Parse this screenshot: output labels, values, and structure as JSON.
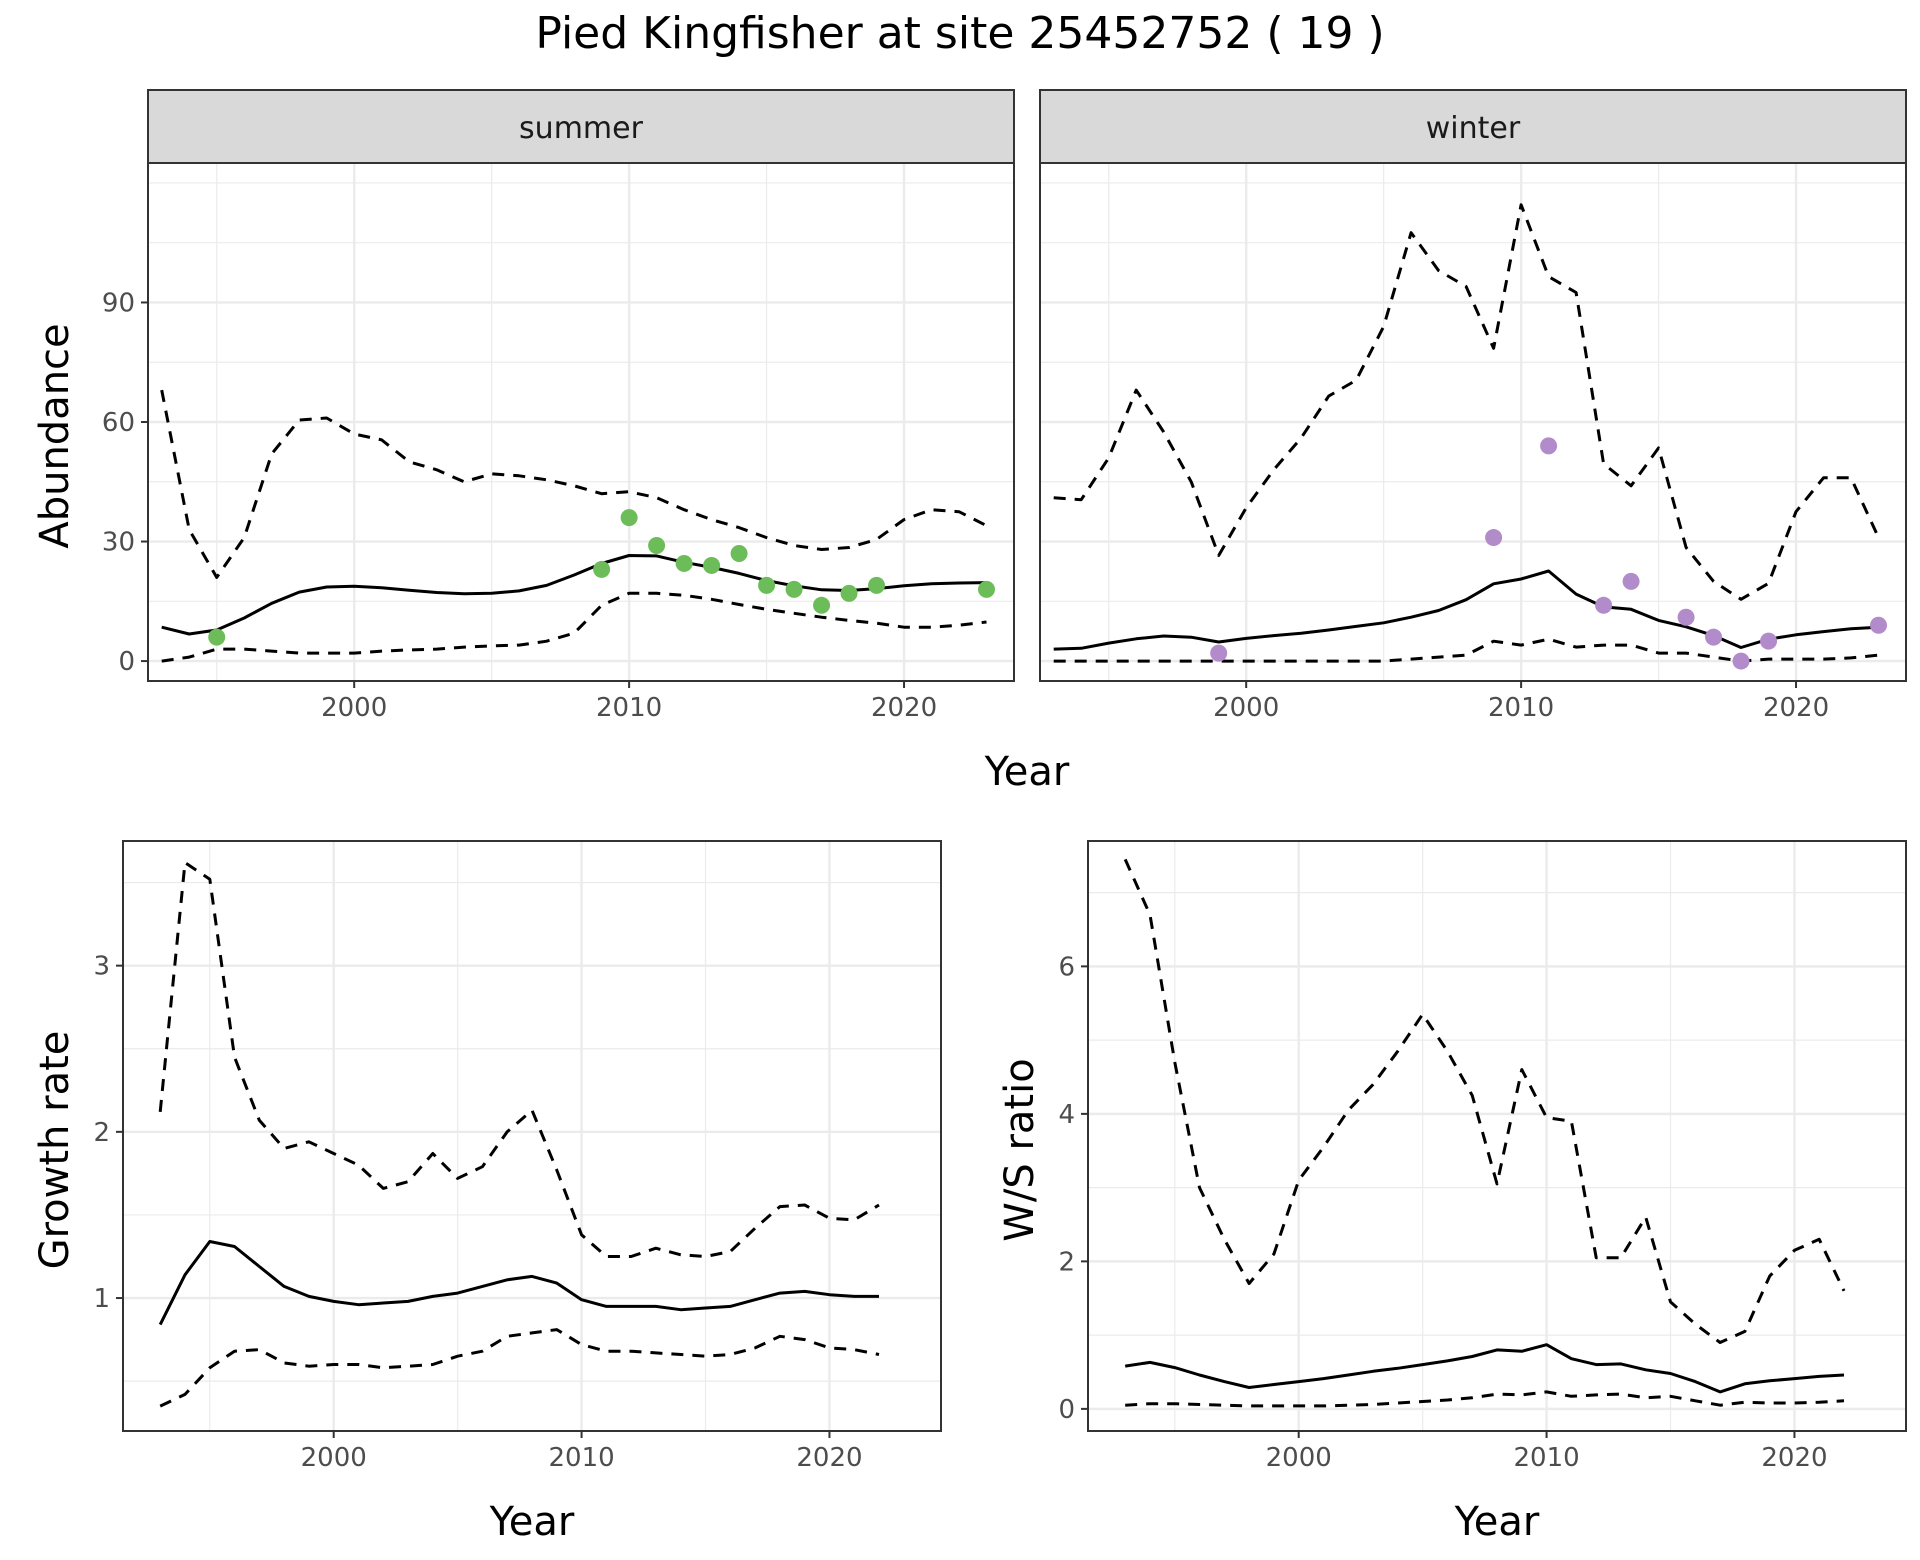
{
  "title": "Pied Kingfisher at site 25452752 ( 19 )",
  "colors": {
    "summer_points": "#6cbd5a",
    "winter_points": "#b28bcb",
    "line": "#000000",
    "grid": "#ebebeb",
    "strip_fill": "#d9d9d9"
  },
  "chart_data": [
    {
      "id": "abundance_summer",
      "type": "line",
      "panel": "top-left",
      "strip": "summer",
      "xlabel": "Year",
      "ylabel": "Abundance",
      "xlim": [
        1992.5,
        2024
      ],
      "ylim": [
        -5,
        125
      ],
      "xticks": [
        2000,
        2010,
        2020
      ],
      "yticks": [
        0,
        30,
        60,
        90
      ],
      "grid": true,
      "series": [
        {
          "style": "solid",
          "x": [
            1993,
            1994,
            1995,
            1996,
            1997,
            1998,
            1999,
            2000,
            2001,
            2002,
            2003,
            2004,
            2005,
            2006,
            2007,
            2008,
            2009,
            2010,
            2011,
            2012,
            2013,
            2014,
            2015,
            2016,
            2017,
            2018,
            2019,
            2020,
            2021,
            2022,
            2023
          ],
          "values": [
            8.5,
            6.8,
            7.8,
            10.8,
            14.5,
            17.3,
            18.6,
            18.8,
            18.4,
            17.8,
            17.2,
            16.9,
            17.0,
            17.6,
            19.0,
            21.6,
            24.5,
            26.5,
            26.4,
            24.8,
            23.5,
            22.0,
            20.2,
            18.9,
            17.9,
            17.7,
            18.2,
            18.9,
            19.4,
            19.6,
            19.7
          ]
        },
        {
          "style": "dashed",
          "x": [
            1993,
            1994,
            1995,
            1996,
            1997,
            1998,
            1999,
            2000,
            2001,
            2002,
            2003,
            2004,
            2005,
            2006,
            2007,
            2008,
            2009,
            2010,
            2011,
            2012,
            2013,
            2014,
            2015,
            2016,
            2017,
            2018,
            2019,
            2020,
            2021,
            2022,
            2023
          ],
          "values": [
            68,
            33,
            21,
            31,
            52,
            60.5,
            61,
            57,
            55.5,
            50,
            48,
            45,
            47,
            46.5,
            45.5,
            44,
            42,
            42.5,
            41,
            38,
            35.5,
            33.5,
            31,
            29,
            28,
            28.5,
            30.5,
            35.5,
            38,
            37.5,
            34
          ]
        },
        {
          "style": "dashed",
          "x": [
            1993,
            1994,
            1995,
            1996,
            1997,
            1998,
            1999,
            2000,
            2001,
            2002,
            2003,
            2004,
            2005,
            2006,
            2007,
            2008,
            2009,
            2010,
            2011,
            2012,
            2013,
            2014,
            2015,
            2016,
            2017,
            2018,
            2019,
            2020,
            2021,
            2022,
            2023
          ],
          "values": [
            0,
            1,
            3,
            3,
            2.5,
            2,
            2,
            2,
            2.5,
            2.8,
            3,
            3.5,
            3.8,
            4,
            5,
            7,
            14,
            17,
            17,
            16.5,
            15.5,
            14.2,
            13,
            12,
            11,
            10.2,
            9.5,
            8.5,
            8.5,
            9,
            9.8
          ]
        }
      ],
      "points": {
        "x": [
          1995,
          2009,
          2010,
          2011,
          2012,
          2013,
          2014,
          2015,
          2016,
          2017,
          2018,
          2019,
          2023
        ],
        "values": [
          6,
          23,
          36,
          29,
          24.5,
          24,
          27,
          19,
          18,
          14,
          17,
          19,
          18
        ]
      }
    },
    {
      "id": "abundance_winter",
      "type": "line",
      "panel": "top-right",
      "strip": "winter",
      "xlabel": "Year",
      "ylabel": "",
      "xlim": [
        1992.5,
        2024
      ],
      "ylim": [
        -5,
        125
      ],
      "xticks": [
        2000,
        2010,
        2020
      ],
      "yticks": [
        0,
        30,
        60,
        90
      ],
      "grid": true,
      "series": [
        {
          "style": "solid",
          "x": [
            1993,
            1994,
            1995,
            1996,
            1997,
            1998,
            1999,
            2000,
            2001,
            2002,
            2003,
            2004,
            2005,
            2006,
            2007,
            2008,
            2009,
            2010,
            2011,
            2012,
            2013,
            2014,
            2015,
            2016,
            2017,
            2018,
            2019,
            2020,
            2021,
            2022,
            2023
          ],
          "values": [
            3,
            3.2,
            4.5,
            5.6,
            6.3,
            6,
            4.8,
            5.7,
            6.4,
            7,
            7.8,
            8.7,
            9.6,
            11,
            12.7,
            15.4,
            19.4,
            20.6,
            22.6,
            16.8,
            13.6,
            13,
            10.2,
            8.6,
            6.4,
            3.4,
            5.5,
            6.6,
            7.4,
            8.1,
            8.5
          ]
        },
        {
          "style": "dashed",
          "x": [
            1993,
            1994,
            1995,
            1996,
            1997,
            1998,
            1999,
            2000,
            2001,
            2002,
            2003,
            2004,
            2005,
            2006,
            2007,
            2008,
            2009,
            2010,
            2011,
            2012,
            2013,
            2014,
            2015,
            2016,
            2017,
            2018,
            2019,
            2020,
            2021,
            2022,
            2023
          ],
          "values": [
            41,
            40.5,
            51,
            68,
            57.5,
            45,
            26.5,
            38.5,
            48,
            56,
            66.5,
            70.5,
            84,
            107.5,
            98,
            94,
            78.5,
            114.5,
            96.5,
            92.5,
            49.5,
            44,
            53.5,
            28.5,
            20,
            15.5,
            19.5,
            37.5,
            46,
            46,
            31
          ]
        },
        {
          "style": "dashed",
          "x": [
            1993,
            1994,
            1995,
            1996,
            1997,
            1998,
            1999,
            2000,
            2001,
            2002,
            2003,
            2004,
            2005,
            2006,
            2007,
            2008,
            2009,
            2010,
            2011,
            2012,
            2013,
            2014,
            2015,
            2016,
            2017,
            2018,
            2019,
            2020,
            2021,
            2022,
            2023
          ],
          "values": [
            0,
            0,
            0,
            0,
            0,
            0,
            0,
            0,
            0,
            0,
            0,
            0,
            0,
            0.5,
            1,
            1.5,
            5,
            4,
            5.5,
            3.5,
            4,
            4,
            2,
            2,
            1,
            0,
            0.5,
            0.5,
            0.5,
            0.8,
            1.5
          ]
        }
      ],
      "points": {
        "x": [
          1999,
          2009,
          2011,
          2013,
          2014,
          2016,
          2017,
          2018,
          2019,
          2023
        ],
        "values": [
          2,
          31,
          54,
          14,
          20,
          11,
          6,
          0,
          5,
          9
        ]
      }
    },
    {
      "id": "growth_rate",
      "type": "line",
      "panel": "bottom-left",
      "xlabel": "Year",
      "ylabel": "Growth rate",
      "xlim": [
        1991.5,
        2024.5
      ],
      "ylim": [
        0.2,
        3.75
      ],
      "xticks": [
        2000,
        2010,
        2020
      ],
      "yticks": [
        1,
        2,
        3
      ],
      "grid": true,
      "series": [
        {
          "style": "solid",
          "x": [
            1993,
            1994,
            1995,
            1996,
            1997,
            1998,
            1999,
            2000,
            2001,
            2002,
            2003,
            2004,
            2005,
            2006,
            2007,
            2008,
            2009,
            2010,
            2011,
            2012,
            2013,
            2014,
            2015,
            2016,
            2017,
            2018,
            2019,
            2020,
            2021,
            2022
          ],
          "values": [
            0.84,
            1.14,
            1.34,
            1.31,
            1.19,
            1.07,
            1.01,
            0.98,
            0.96,
            0.97,
            0.98,
            1.01,
            1.03,
            1.07,
            1.11,
            1.13,
            1.09,
            0.99,
            0.95,
            0.95,
            0.95,
            0.93,
            0.94,
            0.95,
            0.99,
            1.03,
            1.04,
            1.02,
            1.01,
            1.01
          ]
        },
        {
          "style": "dashed",
          "x": [
            1993,
            1994,
            1995,
            1996,
            1997,
            1998,
            1999,
            2000,
            2001,
            2002,
            2003,
            2004,
            2005,
            2006,
            2007,
            2008,
            2009,
            2010,
            2011,
            2012,
            2013,
            2014,
            2015,
            2016,
            2017,
            2018,
            2019,
            2020,
            2021,
            2022
          ],
          "values": [
            2.12,
            3.62,
            3.52,
            2.45,
            2.07,
            1.9,
            1.94,
            1.87,
            1.8,
            1.66,
            1.7,
            1.87,
            1.72,
            1.79,
            2.0,
            2.13,
            1.77,
            1.38,
            1.25,
            1.25,
            1.3,
            1.26,
            1.25,
            1.28,
            1.42,
            1.55,
            1.56,
            1.48,
            1.47,
            1.56
          ]
        },
        {
          "style": "dashed",
          "x": [
            1993,
            1994,
            1995,
            1996,
            1997,
            1998,
            1999,
            2000,
            2001,
            2002,
            2003,
            2004,
            2005,
            2006,
            2007,
            2008,
            2009,
            2010,
            2011,
            2012,
            2013,
            2014,
            2015,
            2016,
            2017,
            2018,
            2019,
            2020,
            2021,
            2022
          ],
          "values": [
            0.35,
            0.42,
            0.58,
            0.68,
            0.69,
            0.61,
            0.59,
            0.6,
            0.6,
            0.58,
            0.59,
            0.6,
            0.65,
            0.68,
            0.77,
            0.79,
            0.81,
            0.72,
            0.68,
            0.68,
            0.67,
            0.66,
            0.65,
            0.66,
            0.7,
            0.77,
            0.75,
            0.7,
            0.69,
            0.66
          ]
        }
      ]
    },
    {
      "id": "ws_ratio",
      "type": "line",
      "panel": "bottom-right",
      "xlabel": "Year",
      "ylabel": "W/S ratio",
      "xlim": [
        1991.5,
        2024.5
      ],
      "ylim": [
        -0.3,
        7.7
      ],
      "xticks": [
        2000,
        2010,
        2020
      ],
      "yticks": [
        0,
        2,
        4,
        6
      ],
      "grid": true,
      "series": [
        {
          "style": "solid",
          "x": [
            1993,
            1994,
            1995,
            1996,
            1997,
            1998,
            1999,
            2000,
            2001,
            2002,
            2003,
            2004,
            2005,
            2006,
            2007,
            2008,
            2009,
            2010,
            2011,
            2012,
            2013,
            2014,
            2015,
            2016,
            2017,
            2018,
            2019,
            2020,
            2021,
            2022
          ],
          "values": [
            0.58,
            0.63,
            0.56,
            0.46,
            0.37,
            0.29,
            0.33,
            0.37,
            0.41,
            0.46,
            0.51,
            0.55,
            0.6,
            0.65,
            0.71,
            0.8,
            0.78,
            0.87,
            0.68,
            0.6,
            0.61,
            0.53,
            0.48,
            0.37,
            0.23,
            0.34,
            0.38,
            0.41,
            0.44,
            0.46
          ]
        },
        {
          "style": "dashed",
          "x": [
            1993,
            1994,
            1995,
            1996,
            1997,
            1998,
            1999,
            2000,
            2001,
            2002,
            2003,
            2004,
            2005,
            2006,
            2007,
            2008,
            2009,
            2010,
            2011,
            2012,
            2013,
            2014,
            2015,
            2016,
            2017,
            2018,
            2019,
            2020,
            2021,
            2022
          ],
          "values": [
            7.45,
            6.7,
            4.7,
            3.0,
            2.3,
            1.7,
            2.1,
            3.1,
            3.55,
            4.05,
            4.4,
            4.85,
            5.35,
            4.85,
            4.25,
            3.05,
            4.6,
            3.95,
            3.9,
            2.05,
            2.05,
            2.6,
            1.45,
            1.15,
            0.9,
            1.05,
            1.8,
            2.15,
            2.3,
            1.6
          ]
        },
        {
          "style": "dashed",
          "x": [
            1993,
            1994,
            1995,
            1996,
            1997,
            1998,
            1999,
            2000,
            2001,
            2002,
            2003,
            2004,
            2005,
            2006,
            2007,
            2008,
            2009,
            2010,
            2011,
            2012,
            2013,
            2014,
            2015,
            2016,
            2017,
            2018,
            2019,
            2020,
            2021,
            2022
          ],
          "values": [
            0.05,
            0.07,
            0.07,
            0.06,
            0.05,
            0.04,
            0.04,
            0.04,
            0.04,
            0.05,
            0.06,
            0.08,
            0.1,
            0.12,
            0.15,
            0.2,
            0.19,
            0.23,
            0.17,
            0.19,
            0.2,
            0.15,
            0.17,
            0.11,
            0.05,
            0.09,
            0.08,
            0.08,
            0.09,
            0.11
          ]
        }
      ]
    }
  ]
}
